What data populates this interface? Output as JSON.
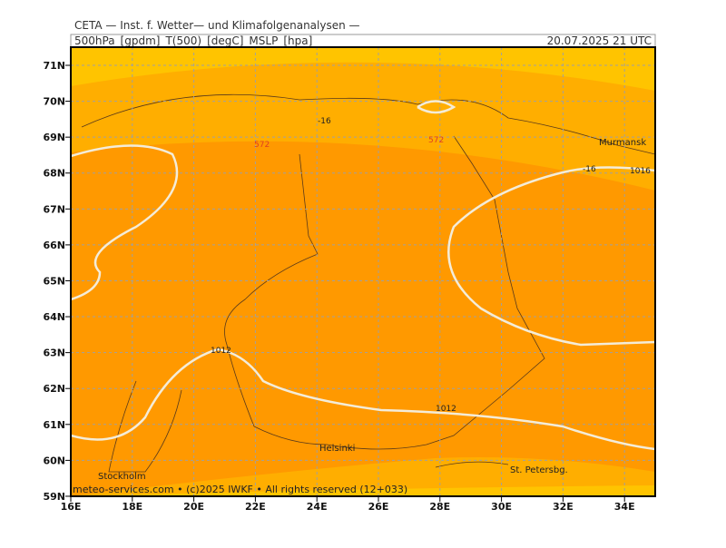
{
  "header": {
    "institute": "CETA — Inst. f. Wetter— und Klimafolgenanalysen —",
    "parameters": "500hPa_[gpdm]_T(500)_[degC]_MSLP_[hpa]",
    "time": "20.07.2025  21 UTC"
  },
  "axes": {
    "lat": [
      "71N",
      "70N",
      "69N",
      "68N",
      "67N",
      "66N",
      "65N",
      "64N",
      "63N",
      "62N",
      "61N",
      "60N",
      "59N"
    ],
    "lon": [
      "16E",
      "18E",
      "20E",
      "22E",
      "24E",
      "26E",
      "28E",
      "30E",
      "32E",
      "34E"
    ]
  },
  "contour_labels": [
    "-16",
    "-16",
    "572",
    "572",
    "1016",
    "1012",
    "1012"
  ],
  "cities": [
    "Murmansk",
    "Helsinki",
    "Stockholm",
    "St. Petersbg."
  ],
  "footer": "meteo-services.com • (c)2025 IWKF • All rights reserved (12+033)"
}
